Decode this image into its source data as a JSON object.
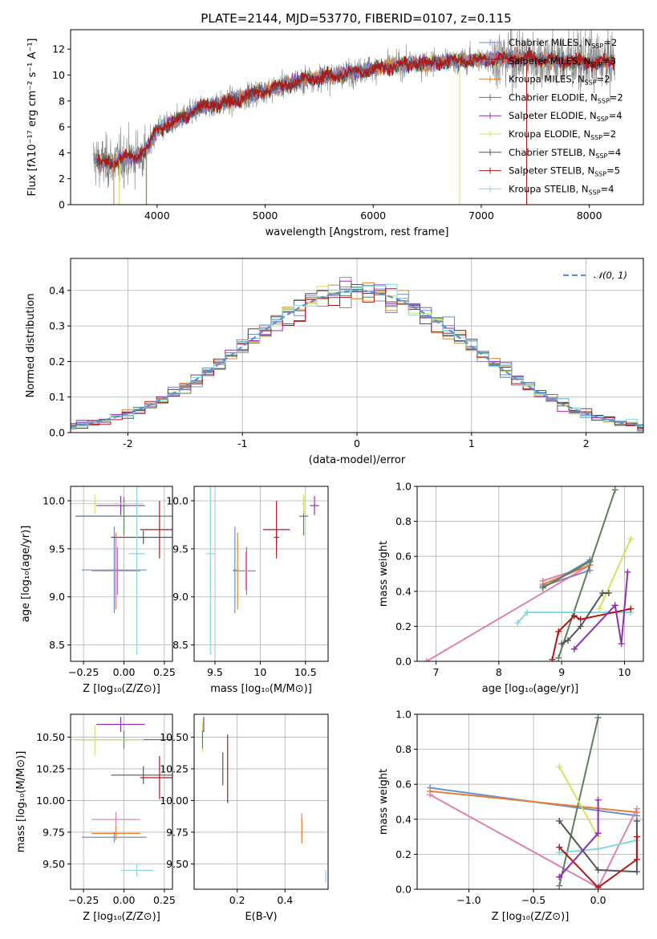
{
  "title": "PLATE=2144, MJD=53770, FIBERID=0107, z=0.115",
  "colors": {
    "chabrier_miles": "#6a8fd0",
    "salpeter_miles": "#8b7fb8",
    "kroupa_miles": "#e08030",
    "chabrier_elodie": "#5b7f5f",
    "salpeter_elodie": "#9030b0",
    "kroupa_elodie": "#d4e060",
    "chabrier_stelib": "#555555",
    "salpeter_stelib": "#b01818",
    "kroupa_stelib": "#80d8e0",
    "pink": "#e080b0",
    "spectrum": "#808080",
    "normal": "#5b8fd8"
  },
  "chart_data": [
    {
      "id": "spectrum",
      "type": "line",
      "xlabel": "wavelength [Angstrom, rest frame]",
      "ylabel": "Flux [fλ10⁻¹⁷ erg cm⁻² s⁻¹ A⁻¹]",
      "xlim": [
        3200,
        8500
      ],
      "ylim": [
        0,
        13.5
      ],
      "xticks": [
        4000,
        5000,
        6000,
        7000,
        8000
      ],
      "yticks": [
        0,
        2,
        4,
        6,
        8,
        10,
        12
      ],
      "legend_position": "right",
      "legend": [
        {
          "name": "Chabrier MILES, N",
          "sub": "SSP",
          "suffix": "=2",
          "color": "chabrier_miles"
        },
        {
          "name": "Salpeter MILES, N",
          "sub": "SSP",
          "suffix": "=3",
          "color": "salpeter_miles"
        },
        {
          "name": "Kroupa MILES, N",
          "sub": "SSP",
          "suffix": "=2",
          "color": "kroupa_miles"
        },
        {
          "name": "Chabrier ELODIE, N",
          "sub": "SSP",
          "suffix": "=2",
          "color": "chabrier_elodie"
        },
        {
          "name": "Salpeter ELODIE, N",
          "sub": "SSP",
          "suffix": "=4",
          "color": "salpeter_elodie"
        },
        {
          "name": "Kroupa ELODIE, N",
          "sub": "SSP",
          "suffix": "=2",
          "color": "kroupa_elodie"
        },
        {
          "name": "Chabrier STELIB, N",
          "sub": "SSP",
          "suffix": "=4",
          "color": "chabrier_stelib"
        },
        {
          "name": "Salpeter STELIB, N",
          "sub": "SSP",
          "suffix": "=5",
          "color": "salpeter_stelib"
        },
        {
          "name": "Kroupa STELIB, N",
          "sub": "SSP",
          "suffix": "=4",
          "color": "kroupa_stelib"
        }
      ],
      "continuum": {
        "x": [
          3400,
          3500,
          3600,
          3700,
          3800,
          3900,
          4000,
          4100,
          4200,
          4300,
          4400,
          4500,
          4600,
          4700,
          4800,
          4900,
          5000,
          5200,
          5400,
          5600,
          5800,
          6000,
          6200,
          6400,
          6600,
          6800,
          7000,
          7200,
          7400,
          7600,
          7800,
          8000,
          8200
        ],
        "y": [
          3.5,
          3.2,
          3.3,
          3.6,
          3.7,
          4.2,
          5.8,
          6.1,
          6.6,
          7.0,
          7.5,
          7.7,
          7.8,
          8.0,
          8.3,
          8.6,
          8.8,
          9.3,
          9.7,
          9.9,
          10.2,
          10.5,
          10.7,
          10.9,
          11.0,
          11.1,
          11.2,
          11.3,
          11.3,
          11.2,
          11.1,
          11.0,
          11.0
        ]
      }
    },
    {
      "id": "residual_hist",
      "type": "step",
      "xlabel": "(data-model)/error",
      "ylabel": "Normed distribution",
      "xlim": [
        -2.5,
        2.5
      ],
      "ylim": [
        0,
        0.49
      ],
      "xticks": [
        -2,
        -1,
        0,
        1,
        2
      ],
      "yticks": [
        0.0,
        0.1,
        0.2,
        0.3,
        0.4
      ],
      "legend": "𝒩(0, 1)",
      "legend_position": "top-right",
      "bin_width": 0.1,
      "series_colors": [
        "chabrier_miles",
        "salpeter_miles",
        "kroupa_miles",
        "chabrier_elodie",
        "salpeter_elodie",
        "kroupa_elodie",
        "chabrier_stelib",
        "salpeter_stelib",
        "kroupa_stelib"
      ]
    },
    {
      "id": "age_vs_Z",
      "type": "scatter",
      "xlabel": "Z [log₁₀(Z/Z⊙)]",
      "ylabel": "age  [log₁₀(age/yr)]",
      "xlim": [
        -0.33,
        0.3
      ],
      "ylim": [
        8.33,
        10.15
      ],
      "xticks": [
        -0.25,
        0.0,
        0.25
      ],
      "xticklabels": [
        "−0.25",
        "0.00",
        "0.25"
      ],
      "yticks": [
        8.5,
        9.0,
        9.5,
        10.0
      ],
      "points": [
        {
          "x": -0.06,
          "y": 9.28,
          "xe": 0.2,
          "ye": 0.45,
          "c": "chabrier_miles"
        },
        {
          "x": -0.04,
          "y": 9.27,
          "xe": 0.1,
          "ye": 0.25,
          "c": "salpeter_miles"
        },
        {
          "x": -0.05,
          "y": 9.27,
          "xe": 0.1,
          "ye": 0.4,
          "c": "kroupa_miles"
        },
        {
          "x": 0.0,
          "y": 9.84,
          "xe": 0.3,
          "ye": 0.2,
          "c": "chabrier_elodie"
        },
        {
          "x": -0.02,
          "y": 9.95,
          "xe": 0.15,
          "ye": 0.1,
          "c": "salpeter_elodie"
        },
        {
          "x": -0.18,
          "y": 9.97,
          "xe": 0.3,
          "ye": 0.1,
          "c": "kroupa_elodie"
        },
        {
          "x": 0.12,
          "y": 9.62,
          "xe": 0.2,
          "ye": 0.07,
          "c": "chabrier_stelib"
        },
        {
          "x": 0.22,
          "y": 9.7,
          "xe": 0.12,
          "ye": 0.3,
          "c": "salpeter_stelib"
        },
        {
          "x": 0.08,
          "y": 9.45,
          "xe": 0.05,
          "ye": 1.05,
          "c": "kroupa_stelib"
        },
        {
          "x": -0.05,
          "y": 9.27,
          "xe": 0.15,
          "ye": 0.35,
          "c": "pink"
        }
      ]
    },
    {
      "id": "age_vs_mass",
      "type": "scatter",
      "xlabel": "mass [log₁₀(M/M⊙)]",
      "xlim": [
        9.27,
        10.75
      ],
      "ylim": [
        8.33,
        10.15
      ],
      "xticks": [
        9.5,
        10.0,
        10.5
      ],
      "yticks": [
        8.5,
        9.0,
        9.5,
        10.0
      ],
      "points": [
        {
          "x": 9.72,
          "y": 9.28,
          "xe": 0.02,
          "ye": 0.45,
          "c": "chabrier_miles"
        },
        {
          "x": 9.85,
          "y": 9.27,
          "xe": 0.1,
          "ye": 0.25,
          "c": "salpeter_miles"
        },
        {
          "x": 9.75,
          "y": 9.27,
          "xe": 0.05,
          "ye": 0.4,
          "c": "kroupa_miles"
        },
        {
          "x": 10.48,
          "y": 9.84,
          "xe": 0.05,
          "ye": 0.2,
          "c": "chabrier_elodie"
        },
        {
          "x": 10.6,
          "y": 9.95,
          "xe": 0.05,
          "ye": 0.1,
          "c": "salpeter_elodie"
        },
        {
          "x": 10.48,
          "y": 9.97,
          "xe": 0.02,
          "ye": 0.1,
          "c": "kroupa_elodie"
        },
        {
          "x": 10.18,
          "y": 9.62,
          "xe": 0.03,
          "ye": 0.07,
          "c": "chabrier_stelib"
        },
        {
          "x": 10.18,
          "y": 9.7,
          "xe": 0.15,
          "ye": 0.3,
          "c": "salpeter_stelib"
        },
        {
          "x": 9.45,
          "y": 9.45,
          "xe": 0.05,
          "ye": 1.05,
          "c": "kroupa_stelib"
        },
        {
          "x": 9.84,
          "y": 9.27,
          "xe": 0.03,
          "ye": 0.2,
          "c": "pink"
        }
      ]
    },
    {
      "id": "weight_vs_age",
      "type": "line",
      "xlabel": "age  [log₁₀(age/yr)]",
      "ylabel": "mass weight",
      "xlim": [
        6.7,
        10.3
      ],
      "ylim": [
        0,
        1
      ],
      "xticks": [
        7,
        8,
        9,
        10
      ],
      "yticks": [
        0.0,
        0.2,
        0.4,
        0.6,
        0.8,
        1.0
      ],
      "series": [
        {
          "c": "pink",
          "x": [
            6.85,
            9.45
          ],
          "y": [
            0.0,
            0.55
          ]
        },
        {
          "c": "pink",
          "x": [
            8.7,
            9.3
          ],
          "y": [
            0.46,
            0.53
          ]
        },
        {
          "c": "chabrier_miles",
          "x": [
            8.7,
            9.45
          ],
          "y": [
            0.42,
            0.58
          ]
        },
        {
          "c": "kroupa_miles",
          "x": [
            8.7,
            9.45
          ],
          "y": [
            0.44,
            0.55
          ]
        },
        {
          "c": "salpeter_miles",
          "x": [
            8.7,
            9.45
          ],
          "y": [
            0.43,
            0.52
          ]
        },
        {
          "c": "chabrier_elodie",
          "x": [
            8.95,
            9.85
          ],
          "y": [
            0.02,
            0.98
          ]
        },
        {
          "c": "chabrier_elodie",
          "x": [
            8.7,
            9.45
          ],
          "y": [
            0.42,
            0.57
          ]
        },
        {
          "c": "kroupa_elodie",
          "x": [
            9.6,
            10.1
          ],
          "y": [
            0.3,
            0.7
          ]
        },
        {
          "c": "kroupa_stelib",
          "x": [
            8.3,
            8.45,
            10.1
          ],
          "y": [
            0.22,
            0.28,
            0.28
          ]
        },
        {
          "c": "chabrier_stelib",
          "x": [
            9.0,
            9.1,
            9.3,
            9.65,
            9.75
          ],
          "y": [
            0.1,
            0.12,
            0.2,
            0.39,
            0.39
          ]
        },
        {
          "c": "salpeter_stelib",
          "x": [
            8.85,
            8.95,
            9.2,
            9.3,
            10.1
          ],
          "y": [
            0.01,
            0.17,
            0.26,
            0.24,
            0.3
          ]
        },
        {
          "c": "salpeter_elodie",
          "x": [
            9.2,
            9.85,
            9.95,
            10.05
          ],
          "y": [
            0.07,
            0.32,
            0.1,
            0.51
          ]
        }
      ]
    },
    {
      "id": "mass_vs_Z",
      "type": "scatter",
      "xlabel": "Z [log₁₀(Z/Z⊙)]",
      "ylabel": "mass [log₁₀(M/M⊙)]",
      "xlim": [
        -0.33,
        0.3
      ],
      "ylim": [
        9.3,
        10.68
      ],
      "xticks": [
        -0.25,
        0.0,
        0.25
      ],
      "xticklabels": [
        "−0.25",
        "0.00",
        "0.25"
      ],
      "yticks": [
        9.5,
        9.75,
        10.0,
        10.25,
        10.5
      ],
      "yticklabels": [
        "9.50",
        "9.75",
        "10.00",
        "10.25",
        "10.50"
      ],
      "points": [
        {
          "x": -0.06,
          "y": 9.71,
          "xe": 0.2,
          "ye": 0.04,
          "c": "chabrier_miles"
        },
        {
          "x": -0.05,
          "y": 9.74,
          "xe": 0.15,
          "ye": 0.05,
          "c": "kroupa_miles"
        },
        {
          "x": -0.05,
          "y": 9.85,
          "xe": 0.15,
          "ye": 0.06,
          "c": "pink"
        },
        {
          "x": 0.0,
          "y": 10.48,
          "xe": 0.3,
          "ye": 0.07,
          "c": "chabrier_elodie"
        },
        {
          "x": -0.02,
          "y": 10.6,
          "xe": 0.15,
          "ye": 0.06,
          "c": "salpeter_elodie"
        },
        {
          "x": -0.18,
          "y": 10.48,
          "xe": 0.3,
          "ye": 0.12,
          "c": "kroupa_elodie"
        },
        {
          "x": 0.12,
          "y": 10.2,
          "xe": 0.2,
          "ye": 0.07,
          "c": "chabrier_stelib"
        },
        {
          "x": 0.22,
          "y": 10.18,
          "xe": 0.12,
          "ye": 0.17,
          "c": "salpeter_stelib"
        },
        {
          "x": 0.08,
          "y": 9.45,
          "xe": 0.1,
          "ye": 0.05,
          "c": "kroupa_stelib"
        }
      ]
    },
    {
      "id": "mass_vs_ebv",
      "type": "scatter",
      "xlabel": "E(B-V)",
      "xlim": [
        0.02,
        0.58
      ],
      "ylim": [
        9.3,
        10.68
      ],
      "xticks": [
        0.2,
        0.4
      ],
      "yticks": [
        9.5,
        9.75,
        10.0,
        10.25,
        10.5
      ],
      "yticklabels": [
        "9.50",
        "9.75",
        "10.00",
        "10.25",
        "10.50"
      ],
      "points": [
        {
          "x": 0.06,
          "y": 10.6,
          "xe": 0.0,
          "ye": 0.06,
          "c": "salpeter_elodie"
        },
        {
          "x": 0.055,
          "y": 10.5,
          "xe": 0.0,
          "ye": 0.12,
          "c": "kroupa_elodie"
        },
        {
          "x": 0.055,
          "y": 10.48,
          "xe": 0.0,
          "ye": 0.07,
          "c": "chabrier_elodie"
        },
        {
          "x": 0.14,
          "y": 10.25,
          "xe": 0.0,
          "ye": 0.13,
          "c": "chabrier_stelib"
        },
        {
          "x": 0.16,
          "y": 10.25,
          "xe": 0.0,
          "ye": 0.27,
          "c": "salpeter_stelib"
        },
        {
          "x": 0.47,
          "y": 9.8,
          "xe": 0.0,
          "ye": 0.1,
          "c": "pink"
        },
        {
          "x": 0.47,
          "y": 9.76,
          "xe": 0.0,
          "ye": 0.1,
          "c": "kroupa_miles"
        },
        {
          "x": 0.57,
          "y": 9.4,
          "xe": 0.0,
          "ye": 0.05,
          "c": "kroupa_stelib"
        }
      ]
    },
    {
      "id": "weight_vs_Z",
      "type": "line",
      "xlabel": "Z [log₁₀(Z/Z⊙)]",
      "ylabel": "mass weight",
      "xlim": [
        -1.4,
        0.35
      ],
      "ylim": [
        0,
        1
      ],
      "xticks": [
        -1.0,
        -0.5,
        0.0
      ],
      "xticklabels": [
        "−1.0",
        "−0.5",
        "0.0"
      ],
      "yticks": [
        0.0,
        0.2,
        0.4,
        0.6,
        0.8,
        1.0
      ],
      "series": [
        {
          "c": "chabrier_miles",
          "x": [
            -1.3,
            0.3
          ],
          "y": [
            0.58,
            0.42
          ]
        },
        {
          "c": "kroupa_miles",
          "x": [
            -1.3,
            0.3
          ],
          "y": [
            0.56,
            0.44
          ]
        },
        {
          "c": "pink",
          "x": [
            -1.3,
            0.0,
            0.3
          ],
          "y": [
            0.54,
            0.01,
            0.46
          ]
        },
        {
          "c": "chabrier_elodie",
          "x": [
            -0.3,
            0.0
          ],
          "y": [
            0.02,
            0.98
          ]
        },
        {
          "c": "kroupa_elodie",
          "x": [
            -0.3,
            0.0
          ],
          "y": [
            0.7,
            0.3
          ]
        },
        {
          "c": "kroupa_stelib",
          "x": [
            -0.3,
            0.0,
            0.3
          ],
          "y": [
            0.21,
            0.23,
            0.28
          ]
        },
        {
          "c": "chabrier_stelib",
          "x": [
            -0.3,
            0.0,
            0.3,
            0.3
          ],
          "y": [
            0.39,
            0.11,
            0.1,
            0.39
          ]
        },
        {
          "c": "salpeter_stelib",
          "x": [
            -0.3,
            0.0,
            0.3,
            0.3
          ],
          "y": [
            0.24,
            0.01,
            0.17,
            0.3
          ]
        },
        {
          "c": "salpeter_elodie",
          "x": [
            -0.3,
            0.0,
            0.0
          ],
          "y": [
            0.07,
            0.32,
            0.51
          ]
        }
      ]
    }
  ]
}
